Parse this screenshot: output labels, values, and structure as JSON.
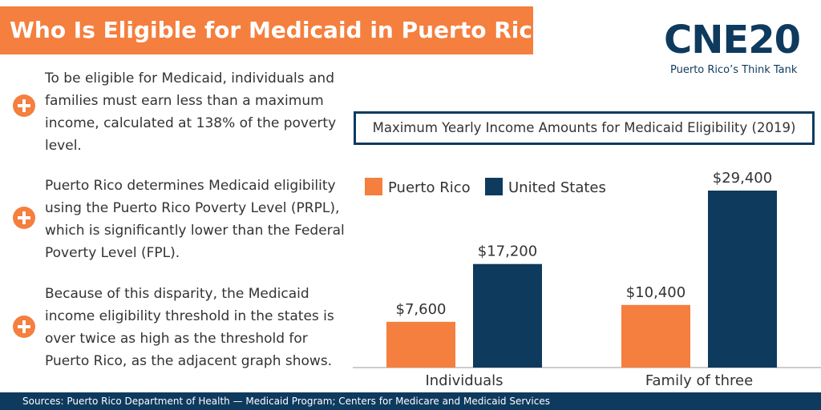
{
  "header": {
    "title": "Who Is Eligible for Medicaid in Puerto Rico?"
  },
  "logo": {
    "name": "CNE20",
    "tagline": "Puerto Rico’s Think Tank"
  },
  "bullets": [
    "To be eligible for Medicaid, individuals and families must earn less than a maximum income, calculated at 138% of the poverty level.",
    "Puerto Rico determines Medicaid eligibility using the Puerto Rico Poverty Level (PRPL), which is significantly lower than the Federal Poverty Level (FPL).",
    "Because of this disparity, the Medicaid income eligibility threshold in the states is over twice as high as the threshold for Puerto Rico, as the adjacent graph shows."
  ],
  "chart_data": {
    "type": "bar",
    "title": "Maximum Yearly Income Amounts for Medicaid Eligibility (2019)",
    "categories": [
      "Individuals",
      "Family of three"
    ],
    "series": [
      {
        "name": "Puerto Rico",
        "color": "#f47f3e",
        "values": [
          7600,
          10400
        ],
        "value_labels": [
          "$7,600",
          "$10,400"
        ]
      },
      {
        "name": "United States",
        "color": "#0e3a5e",
        "values": [
          17200,
          29400
        ],
        "value_labels": [
          "$17,200",
          "$29,400"
        ]
      }
    ]
  },
  "footer": {
    "source": "Sources: Puerto Rico Department of Health — Medicaid Program; Centers for Medicare and Medicaid Services"
  }
}
